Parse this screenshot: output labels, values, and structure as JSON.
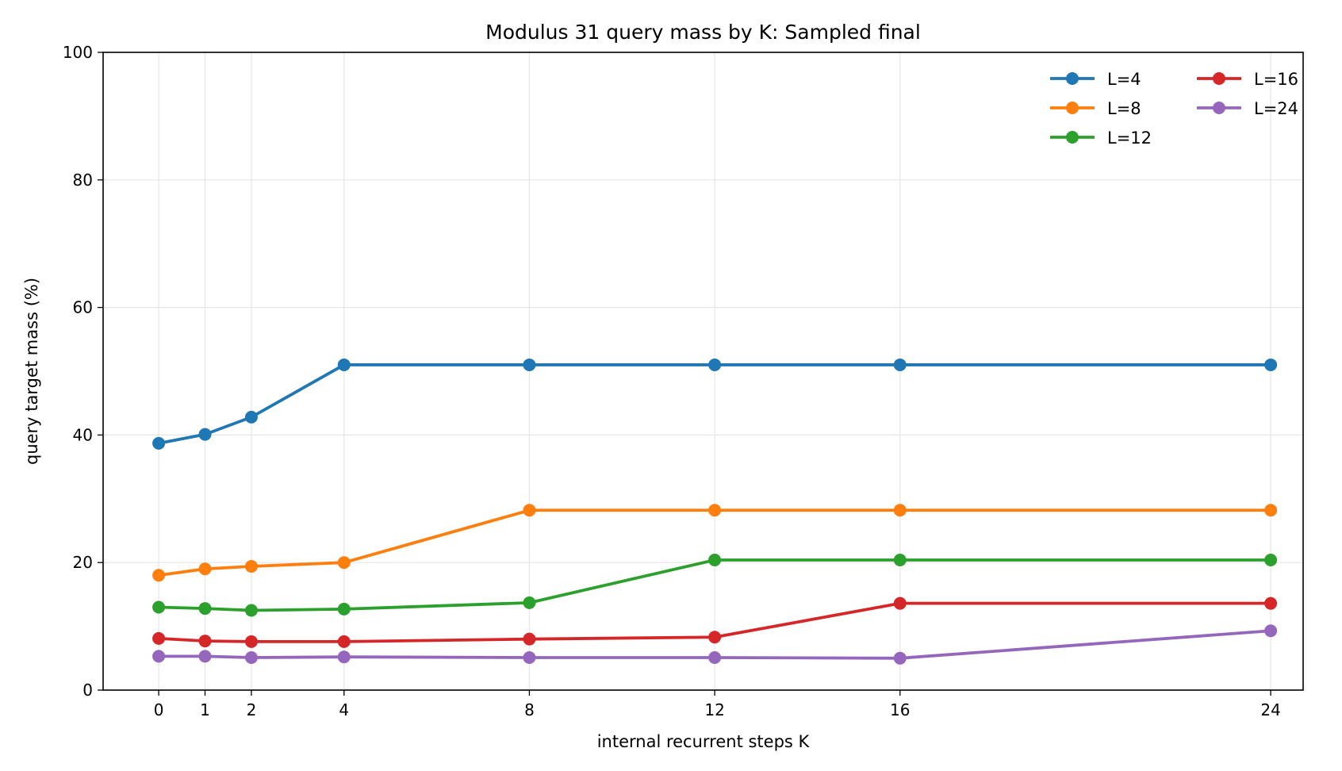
{
  "chart_data": {
    "type": "line",
    "title": "Modulus 31 query mass by K: Sampled final",
    "xlabel": "internal recurrent steps K",
    "ylabel": "query target mass (%)",
    "x": [
      0,
      1,
      2,
      4,
      8,
      12,
      16,
      24
    ],
    "xticks": [
      "0",
      "1",
      "2",
      "4",
      "8",
      "12",
      "16",
      "24"
    ],
    "yticks": [
      "0",
      "20",
      "40",
      "60",
      "80",
      "100"
    ],
    "xlim": [
      -1.2,
      24.7
    ],
    "ylim": [
      0,
      100
    ],
    "grid": true,
    "legend_position": "top-right",
    "series": [
      {
        "name": "L=4",
        "color": "#1f77b4",
        "values": [
          38.7,
          40.1,
          42.8,
          51.0,
          51.0,
          51.0,
          51.0,
          51.0
        ]
      },
      {
        "name": "L=8",
        "color": "#ff7f0e",
        "values": [
          18.0,
          19.0,
          19.4,
          20.0,
          28.2,
          28.2,
          28.2,
          28.2
        ]
      },
      {
        "name": "L=12",
        "color": "#2ca02c",
        "values": [
          13.0,
          12.8,
          12.5,
          12.7,
          13.7,
          20.4,
          20.4,
          20.4
        ]
      },
      {
        "name": "L=16",
        "color": "#d62728",
        "values": [
          8.1,
          7.7,
          7.6,
          7.6,
          8.0,
          8.3,
          13.6,
          13.6
        ]
      },
      {
        "name": "L=24",
        "color": "#9467bd",
        "values": [
          5.3,
          5.3,
          5.1,
          5.2,
          5.1,
          5.1,
          5.0,
          9.3
        ]
      }
    ]
  }
}
